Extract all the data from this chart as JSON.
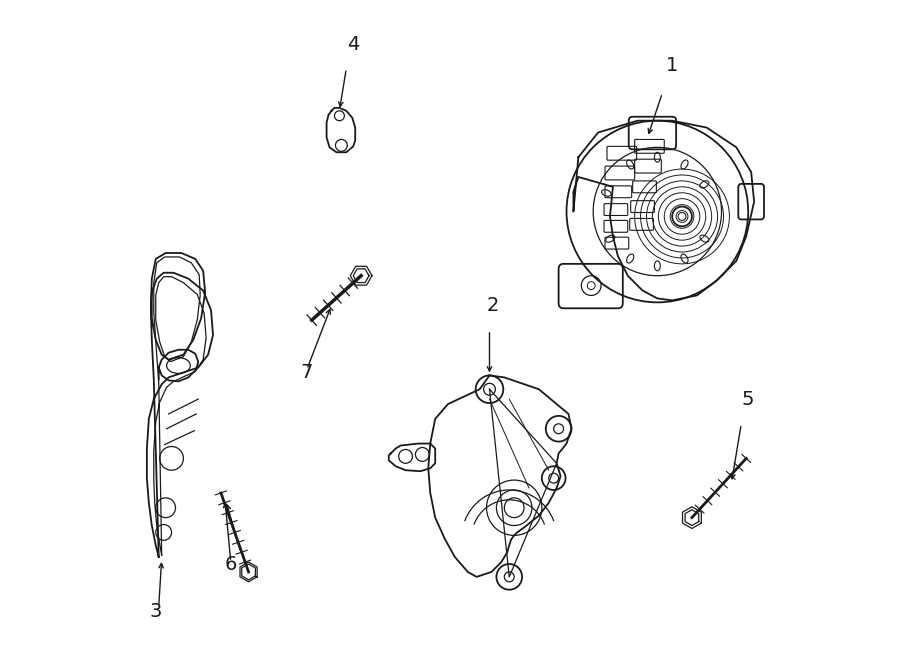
{
  "background_color": "#ffffff",
  "line_color": "#1a1a1a",
  "label_color": "#000000",
  "figsize": [
    9.0,
    6.61
  ],
  "dpi": 100
}
